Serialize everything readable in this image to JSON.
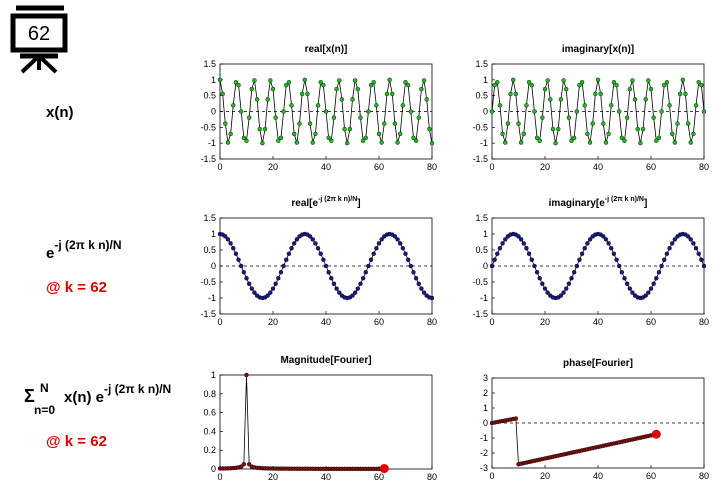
{
  "board_number": "62",
  "row_labels": {
    "x_label": "x(n)",
    "basis_base": "e",
    "basis_exp": "-j (2π k n)/N",
    "k_note_1": "@ k = 62",
    "sum_sym": "Σ",
    "sum_sup": "N",
    "sum_sub": "n=0",
    "sum_body": "x(n) e",
    "sum_exp": "-j (2π k n)/N",
    "k_note_2": "@ k = 62"
  },
  "colors": {
    "green": "#22bb22",
    "navy": "#1a1a7a",
    "red": "#e00000",
    "darkred": "#7a1010",
    "line": "#000000",
    "accent_text": "#e00000"
  },
  "chart_data": [
    {
      "id": "real_x",
      "type": "line",
      "title": "real[x(n)]",
      "xlim": [
        0,
        80
      ],
      "ylim": [
        -1.5,
        1.5
      ],
      "xticks": [
        "0",
        "20",
        "40",
        "60",
        "80"
      ],
      "yticks": [
        "1.5",
        "1",
        "0.5",
        "0",
        "-0.5",
        "-1",
        "-1.5"
      ],
      "marker_color": "#22bb22",
      "formula": "cos(2*pi*10*n/64)",
      "n_range": [
        0,
        80
      ]
    },
    {
      "id": "imag_x",
      "type": "line",
      "title": "imaginary[x(n)]",
      "xlim": [
        0,
        80
      ],
      "ylim": [
        -1.5,
        1.5
      ],
      "xticks": [
        "0",
        "20",
        "40",
        "60",
        "80"
      ],
      "yticks": [
        "1.5",
        "1",
        "0.5",
        "0",
        "-0.5",
        "-1",
        "-1.5"
      ],
      "marker_color": "#22bb22",
      "formula": "sin(2*pi*10*n/64)",
      "n_range": [
        0,
        80
      ]
    },
    {
      "id": "real_e",
      "type": "line",
      "title": "real[e",
      "title_exp": "-j (2π k n)/N",
      "title_end": "]",
      "xlim": [
        0,
        80
      ],
      "ylim": [
        -1.5,
        1.5
      ],
      "xticks": [
        "0",
        "20",
        "40",
        "60",
        "80"
      ],
      "yticks": [
        "1.5",
        "1",
        "0.5",
        "0",
        "-0.5",
        "-1",
        "-1.5"
      ],
      "marker_color": "#1a1a7a",
      "formula": "cos(2*pi*62*n/64)",
      "n_range": [
        0,
        80
      ]
    },
    {
      "id": "imag_e",
      "type": "line",
      "title": "imaginary[e",
      "title_exp": "-j (2π k n)/N",
      "title_end": "]",
      "xlim": [
        0,
        80
      ],
      "ylim": [
        -1.5,
        1.5
      ],
      "xticks": [
        "0",
        "20",
        "40",
        "60",
        "80"
      ],
      "yticks": [
        "1.5",
        "1",
        "0.5",
        "0",
        "-0.5",
        "-1",
        "-1.5"
      ],
      "marker_color": "#1a1a7a",
      "formula": "-sin(2*pi*62*n/64)",
      "n_range": [
        0,
        80
      ]
    },
    {
      "id": "mag",
      "type": "line",
      "title": "Magnitude[Fourier]",
      "xlim": [
        0,
        80
      ],
      "ylim": [
        0,
        1
      ],
      "xticks": [
        "0",
        "20",
        "40",
        "60",
        "80"
      ],
      "yticks": [
        "1",
        "0.8",
        "0.6",
        "0.4",
        "0.2",
        "0"
      ],
      "marker_color": "#7a1010",
      "k_range": [
        0,
        62
      ],
      "peak_k": 10,
      "peak_value": 1.0,
      "current_k": 62,
      "current_value": 0.005,
      "current_color": "#e00000"
    },
    {
      "id": "phase",
      "type": "line",
      "title": "phase[Fourier]",
      "xlim": [
        0,
        80
      ],
      "ylim": [
        -3,
        3
      ],
      "xticks": [
        "0",
        "20",
        "40",
        "60",
        "80"
      ],
      "yticks": [
        "3",
        "2",
        "1",
        "0",
        "-1",
        "-2",
        "-3"
      ],
      "marker_color": "#7a1010",
      "k_range": [
        0,
        62
      ],
      "segment_1": {
        "k": [
          0,
          9
        ],
        "phase": [
          0.0,
          0.3
        ]
      },
      "segment_2": {
        "k": [
          10,
          62
        ],
        "phase": [
          -2.75,
          -0.75
        ]
      },
      "current_k": 62,
      "current_value": -0.75,
      "current_color": "#e00000"
    }
  ]
}
